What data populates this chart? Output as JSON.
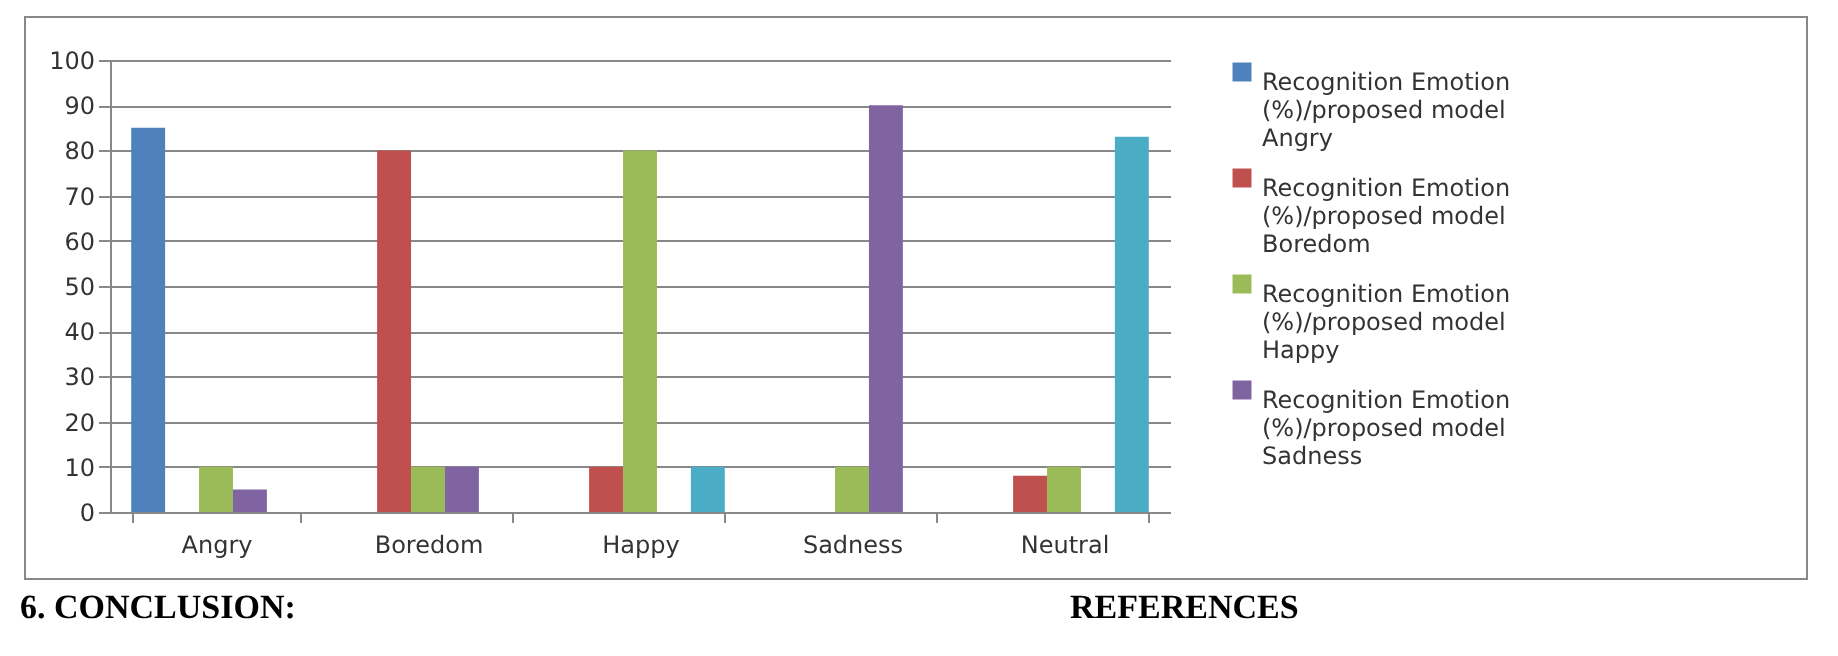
{
  "chart_data": {
    "type": "bar",
    "categories": [
      "Angry",
      "Boredom",
      "Happy",
      "Sadness",
      "Neutral"
    ],
    "series": [
      {
        "name": "Recognition Emotion (%)/proposed model Angry",
        "color": "#4f81bd",
        "values": [
          85,
          0,
          0,
          0,
          0
        ]
      },
      {
        "name": "Recognition Emotion (%)/proposed model Boredom",
        "color": "#c0504d",
        "values": [
          0,
          80,
          10,
          0,
          8
        ]
      },
      {
        "name": "Recognition Emotion (%)/proposed model Happy",
        "color": "#9bbb59",
        "values": [
          10,
          10,
          80,
          10,
          10
        ]
      },
      {
        "name": "Recognition Emotion (%)/proposed model Sadness",
        "color": "#8064a2",
        "values": [
          5,
          10,
          0,
          90,
          0
        ]
      },
      {
        "color": "#4bacc6",
        "values": [
          0,
          0,
          10,
          0,
          83
        ]
      }
    ],
    "ylim": [
      0,
      100
    ],
    "yticks": [
      0,
      10,
      20,
      30,
      40,
      50,
      60,
      70,
      80,
      90,
      100
    ],
    "grid": "y",
    "legend": "right",
    "annotations": [
      "6. CONCLUSION:",
      "REFERENCES"
    ]
  }
}
